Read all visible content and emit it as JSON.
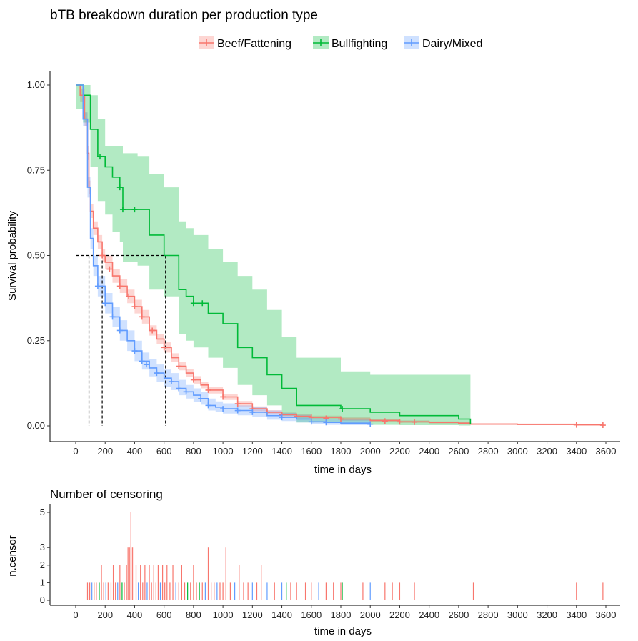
{
  "chart_data": [
    {
      "type": "line",
      "subtype": "kaplan-meier-survival",
      "title": "bTB breakdown duration per production type",
      "xlabel": "time in days",
      "ylabel": "Survival probability",
      "xlim": [
        0,
        3600
      ],
      "ylim": [
        0,
        1
      ],
      "x_ticks": [
        0,
        200,
        400,
        600,
        800,
        1000,
        1200,
        1400,
        1600,
        1800,
        2000,
        2200,
        2400,
        2600,
        2800,
        3000,
        3200,
        3400,
        3600
      ],
      "y_ticks": [
        0,
        0.25,
        0.5,
        0.75,
        1
      ],
      "y_tick_labels": [
        "0.00",
        "0.25",
        "0.50",
        "0.75",
        "1.00"
      ],
      "legend_position": "top",
      "median_lines": {
        "y": 0.5,
        "x": [
          90,
          180,
          610
        ]
      },
      "series": [
        {
          "name": "Beef/Fattening",
          "color": "#f8766d",
          "x": [
            0,
            30,
            60,
            80,
            90,
            100,
            120,
            150,
            180,
            200,
            250,
            300,
            350,
            400,
            450,
            500,
            550,
            600,
            650,
            700,
            750,
            800,
            850,
            900,
            1000,
            1100,
            1200,
            1300,
            1400,
            1500,
            1600,
            1800,
            2000,
            2200,
            2400,
            2600,
            2680,
            3000,
            3400,
            3580
          ],
          "y": [
            1.0,
            0.97,
            0.9,
            0.8,
            0.7,
            0.63,
            0.58,
            0.54,
            0.5,
            0.48,
            0.44,
            0.41,
            0.38,
            0.35,
            0.32,
            0.28,
            0.255,
            0.23,
            0.2,
            0.175,
            0.155,
            0.135,
            0.12,
            0.105,
            0.085,
            0.065,
            0.05,
            0.04,
            0.033,
            0.028,
            0.025,
            0.02,
            0.016,
            0.012,
            0.01,
            0.008,
            0.005,
            0.004,
            0.003,
            0.002
          ],
          "ci_lower": [
            1.0,
            0.95,
            0.88,
            0.78,
            0.68,
            0.61,
            0.56,
            0.52,
            0.48,
            0.46,
            0.42,
            0.39,
            0.36,
            0.33,
            0.3,
            0.265,
            0.24,
            0.215,
            0.187,
            0.163,
            0.143,
            0.124,
            0.11,
            0.095,
            0.076,
            0.057,
            0.043,
            0.034,
            0.027,
            0.022,
            0.02,
            0.015,
            0.012,
            0.009,
            0.007,
            0.005,
            0.003,
            0.002,
            0.001,
            0.001
          ],
          "ci_upper": [
            1.0,
            0.99,
            0.92,
            0.82,
            0.72,
            0.65,
            0.6,
            0.56,
            0.52,
            0.5,
            0.46,
            0.43,
            0.4,
            0.37,
            0.34,
            0.295,
            0.27,
            0.245,
            0.213,
            0.187,
            0.167,
            0.146,
            0.13,
            0.115,
            0.094,
            0.073,
            0.057,
            0.046,
            0.039,
            0.034,
            0.03,
            0.025,
            0.02,
            0.016,
            0.013,
            0.011,
            0.008,
            0.007,
            0.006,
            0.005
          ],
          "censor_times": [
            180,
            230,
            300,
            360,
            400,
            450,
            520,
            600,
            700,
            800,
            900,
            1000,
            1100,
            1200,
            1300,
            1400,
            1500,
            1600,
            1700,
            1800,
            2100,
            2200,
            2300,
            3400,
            3580
          ],
          "censor_surv": [
            0.5,
            0.46,
            0.41,
            0.38,
            0.35,
            0.32,
            0.28,
            0.23,
            0.175,
            0.135,
            0.105,
            0.085,
            0.065,
            0.05,
            0.04,
            0.033,
            0.028,
            0.025,
            0.022,
            0.02,
            0.014,
            0.012,
            0.011,
            0.003,
            0.002
          ]
        },
        {
          "name": "Bullfighting",
          "color": "#00ba38",
          "x": [
            0,
            50,
            100,
            150,
            200,
            250,
            300,
            320,
            420,
            500,
            600,
            700,
            750,
            800,
            900,
            1000,
            1100,
            1200,
            1300,
            1400,
            1500,
            1800,
            2000,
            2200,
            2600,
            2680
          ],
          "y": [
            1.0,
            0.97,
            0.87,
            0.79,
            0.76,
            0.73,
            0.7,
            0.635,
            0.635,
            0.56,
            0.5,
            0.4,
            0.38,
            0.36,
            0.33,
            0.3,
            0.23,
            0.2,
            0.15,
            0.11,
            0.06,
            0.05,
            0.04,
            0.03,
            0.02,
            0.005
          ],
          "ci_lower": [
            0.93,
            0.89,
            0.76,
            0.66,
            0.62,
            0.57,
            0.54,
            0.48,
            0.47,
            0.4,
            0.38,
            0.27,
            0.25,
            0.23,
            0.2,
            0.17,
            0.12,
            0.09,
            0.06,
            0.03,
            0.01,
            0.005,
            0.003,
            0.002,
            0.001,
            0.0
          ],
          "ci_upper": [
            1.0,
            1.0,
            0.97,
            0.9,
            0.82,
            0.82,
            0.82,
            0.8,
            0.79,
            0.74,
            0.7,
            0.6,
            0.58,
            0.56,
            0.52,
            0.48,
            0.44,
            0.4,
            0.34,
            0.26,
            0.2,
            0.16,
            0.15,
            0.15,
            0.15,
            0.15
          ],
          "censor_times": [
            165,
            300,
            320,
            400,
            800,
            860,
            1810
          ],
          "censor_surv": [
            0.79,
            0.7,
            0.635,
            0.635,
            0.36,
            0.36,
            0.05
          ]
        },
        {
          "name": "Dairy/Mixed",
          "color": "#619cff",
          "x": [
            0,
            50,
            80,
            100,
            120,
            150,
            200,
            250,
            300,
            350,
            400,
            450,
            500,
            550,
            600,
            650,
            700,
            750,
            800,
            850,
            900,
            950,
            1000,
            1100,
            1200,
            1300,
            1400,
            1500,
            1600,
            1700,
            1800,
            2000
          ],
          "y": [
            1.0,
            0.9,
            0.7,
            0.55,
            0.47,
            0.41,
            0.36,
            0.32,
            0.28,
            0.25,
            0.22,
            0.19,
            0.17,
            0.155,
            0.14,
            0.13,
            0.11,
            0.1,
            0.09,
            0.08,
            0.06,
            0.055,
            0.05,
            0.045,
            0.04,
            0.03,
            0.025,
            0.02,
            0.012,
            0.01,
            0.008,
            0.005
          ],
          "ci_lower": [
            1.0,
            0.88,
            0.67,
            0.52,
            0.44,
            0.38,
            0.33,
            0.29,
            0.25,
            0.22,
            0.19,
            0.165,
            0.145,
            0.13,
            0.115,
            0.105,
            0.09,
            0.08,
            0.07,
            0.062,
            0.045,
            0.04,
            0.036,
            0.031,
            0.026,
            0.018,
            0.014,
            0.01,
            0.005,
            0.003,
            0.002,
            0.001
          ],
          "ci_upper": [
            1.0,
            0.92,
            0.73,
            0.58,
            0.5,
            0.44,
            0.39,
            0.35,
            0.31,
            0.28,
            0.25,
            0.215,
            0.195,
            0.18,
            0.165,
            0.155,
            0.135,
            0.12,
            0.11,
            0.1,
            0.08,
            0.072,
            0.066,
            0.06,
            0.055,
            0.045,
            0.038,
            0.032,
            0.022,
            0.02,
            0.018,
            0.015
          ],
          "censor_times": [
            150,
            200,
            250,
            300,
            400,
            450,
            480,
            550,
            650,
            700,
            750,
            850,
            900,
            1000,
            1100,
            1200,
            1400,
            1600,
            1700,
            2000
          ],
          "censor_surv": [
            0.41,
            0.36,
            0.32,
            0.28,
            0.22,
            0.19,
            0.18,
            0.155,
            0.13,
            0.11,
            0.1,
            0.08,
            0.06,
            0.05,
            0.045,
            0.04,
            0.025,
            0.012,
            0.01,
            0.005
          ]
        }
      ]
    },
    {
      "type": "bar",
      "subtype": "censoring-histogram",
      "title": "Number of censoring",
      "xlabel": "time in days",
      "ylabel": "n.censor",
      "xlim": [
        0,
        3600
      ],
      "ylim": [
        0,
        5
      ],
      "x_ticks": [
        0,
        200,
        400,
        600,
        800,
        1000,
        1200,
        1400,
        1600,
        1800,
        2000,
        2200,
        2400,
        2600,
        2800,
        3000,
        3200,
        3400,
        3600
      ],
      "y_ticks": [
        0,
        1,
        2,
        3,
        5
      ],
      "bars": [
        {
          "x": 80,
          "n": 1,
          "series": "Beef/Fattening"
        },
        {
          "x": 95,
          "n": 1,
          "series": "Beef/Fattening"
        },
        {
          "x": 110,
          "n": 1,
          "series": "Dairy/Mixed"
        },
        {
          "x": 125,
          "n": 1,
          "series": "Beef/Fattening"
        },
        {
          "x": 140,
          "n": 1,
          "series": "Beef/Fattening"
        },
        {
          "x": 160,
          "n": 1,
          "series": "Bullfighting"
        },
        {
          "x": 175,
          "n": 2,
          "series": "Beef/Fattening"
        },
        {
          "x": 190,
          "n": 1,
          "series": "Beef/Fattening"
        },
        {
          "x": 205,
          "n": 1,
          "series": "Dairy/Mixed"
        },
        {
          "x": 220,
          "n": 1,
          "series": "Beef/Fattening"
        },
        {
          "x": 240,
          "n": 1,
          "series": "Beef/Fattening"
        },
        {
          "x": 255,
          "n": 2,
          "series": "Beef/Fattening"
        },
        {
          "x": 270,
          "n": 1,
          "series": "Beef/Fattening"
        },
        {
          "x": 285,
          "n": 1,
          "series": "Dairy/Mixed"
        },
        {
          "x": 300,
          "n": 2,
          "series": "Beef/Fattening"
        },
        {
          "x": 315,
          "n": 1,
          "series": "Bullfighting"
        },
        {
          "x": 330,
          "n": 1,
          "series": "Beef/Fattening"
        },
        {
          "x": 345,
          "n": 2,
          "series": "Beef/Fattening"
        },
        {
          "x": 355,
          "n": 3,
          "series": "Beef/Fattening"
        },
        {
          "x": 365,
          "n": 3,
          "series": "Beef/Fattening"
        },
        {
          "x": 375,
          "n": 5,
          "series": "Beef/Fattening"
        },
        {
          "x": 385,
          "n": 3,
          "series": "Beef/Fattening"
        },
        {
          "x": 395,
          "n": 3,
          "series": "Beef/Fattening"
        },
        {
          "x": 410,
          "n": 2,
          "series": "Beef/Fattening"
        },
        {
          "x": 425,
          "n": 1,
          "series": "Dairy/Mixed"
        },
        {
          "x": 440,
          "n": 2,
          "series": "Beef/Fattening"
        },
        {
          "x": 455,
          "n": 1,
          "series": "Beef/Fattening"
        },
        {
          "x": 470,
          "n": 2,
          "series": "Beef/Fattening"
        },
        {
          "x": 485,
          "n": 1,
          "series": "Dairy/Mixed"
        },
        {
          "x": 500,
          "n": 2,
          "series": "Beef/Fattening"
        },
        {
          "x": 515,
          "n": 1,
          "series": "Beef/Fattening"
        },
        {
          "x": 530,
          "n": 2,
          "series": "Beef/Fattening"
        },
        {
          "x": 545,
          "n": 1,
          "series": "Beef/Fattening"
        },
        {
          "x": 560,
          "n": 2,
          "series": "Beef/Fattening"
        },
        {
          "x": 575,
          "n": 1,
          "series": "Dairy/Mixed"
        },
        {
          "x": 590,
          "n": 2,
          "series": "Beef/Fattening"
        },
        {
          "x": 605,
          "n": 1,
          "series": "Beef/Fattening"
        },
        {
          "x": 620,
          "n": 2,
          "series": "Beef/Fattening"
        },
        {
          "x": 640,
          "n": 1,
          "series": "Beef/Fattening"
        },
        {
          "x": 660,
          "n": 2,
          "series": "Beef/Fattening"
        },
        {
          "x": 680,
          "n": 1,
          "series": "Dairy/Mixed"
        },
        {
          "x": 700,
          "n": 1,
          "series": "Beef/Fattening"
        },
        {
          "x": 720,
          "n": 2,
          "series": "Beef/Fattening"
        },
        {
          "x": 740,
          "n": 1,
          "series": "Beef/Fattening"
        },
        {
          "x": 760,
          "n": 1,
          "series": "Bullfighting"
        },
        {
          "x": 780,
          "n": 1,
          "series": "Beef/Fattening"
        },
        {
          "x": 800,
          "n": 2,
          "series": "Beef/Fattening"
        },
        {
          "x": 820,
          "n": 1,
          "series": "Beef/Fattening"
        },
        {
          "x": 840,
          "n": 1,
          "series": "Bullfighting"
        },
        {
          "x": 860,
          "n": 1,
          "series": "Beef/Fattening"
        },
        {
          "x": 880,
          "n": 1,
          "series": "Dairy/Mixed"
        },
        {
          "x": 900,
          "n": 3,
          "series": "Beef/Fattening"
        },
        {
          "x": 920,
          "n": 1,
          "series": "Beef/Fattening"
        },
        {
          "x": 940,
          "n": 1,
          "series": "Beef/Fattening"
        },
        {
          "x": 960,
          "n": 1,
          "series": "Dairy/Mixed"
        },
        {
          "x": 980,
          "n": 1,
          "series": "Beef/Fattening"
        },
        {
          "x": 1000,
          "n": 1,
          "series": "Beef/Fattening"
        },
        {
          "x": 1020,
          "n": 3,
          "series": "Beef/Fattening"
        },
        {
          "x": 1050,
          "n": 1,
          "series": "Beef/Fattening"
        },
        {
          "x": 1080,
          "n": 1,
          "series": "Dairy/Mixed"
        },
        {
          "x": 1110,
          "n": 2,
          "series": "Beef/Fattening"
        },
        {
          "x": 1140,
          "n": 1,
          "series": "Beef/Fattening"
        },
        {
          "x": 1170,
          "n": 1,
          "series": "Beef/Fattening"
        },
        {
          "x": 1200,
          "n": 1,
          "series": "Dairy/Mixed"
        },
        {
          "x": 1230,
          "n": 1,
          "series": "Beef/Fattening"
        },
        {
          "x": 1260,
          "n": 2,
          "series": "Beef/Fattening"
        },
        {
          "x": 1300,
          "n": 1,
          "series": "Dairy/Mixed"
        },
        {
          "x": 1350,
          "n": 1,
          "series": "Beef/Fattening"
        },
        {
          "x": 1400,
          "n": 1,
          "series": "Dairy/Mixed"
        },
        {
          "x": 1430,
          "n": 1,
          "series": "Bullfighting"
        },
        {
          "x": 1460,
          "n": 1,
          "series": "Beef/Fattening"
        },
        {
          "x": 1500,
          "n": 1,
          "series": "Beef/Fattening"
        },
        {
          "x": 1560,
          "n": 1,
          "series": "Beef/Fattening"
        },
        {
          "x": 1600,
          "n": 1,
          "series": "Beef/Fattening"
        },
        {
          "x": 1650,
          "n": 1,
          "series": "Dairy/Mixed"
        },
        {
          "x": 1700,
          "n": 1,
          "series": "Beef/Fattening"
        },
        {
          "x": 1750,
          "n": 1,
          "series": "Beef/Fattening"
        },
        {
          "x": 1800,
          "n": 1,
          "series": "Beef/Fattening"
        },
        {
          "x": 1810,
          "n": 1,
          "series": "Bullfighting"
        },
        {
          "x": 1950,
          "n": 1,
          "series": "Beef/Fattening"
        },
        {
          "x": 2000,
          "n": 1,
          "series": "Dairy/Mixed"
        },
        {
          "x": 2100,
          "n": 1,
          "series": "Beef/Fattening"
        },
        {
          "x": 2150,
          "n": 1,
          "series": "Beef/Fattening"
        },
        {
          "x": 2200,
          "n": 1,
          "series": "Beef/Fattening"
        },
        {
          "x": 2300,
          "n": 1,
          "series": "Beef/Fattening"
        },
        {
          "x": 2700,
          "n": 1,
          "series": "Beef/Fattening"
        },
        {
          "x": 3400,
          "n": 1,
          "series": "Beef/Fattening"
        },
        {
          "x": 3580,
          "n": 1,
          "series": "Beef/Fattening"
        }
      ]
    }
  ]
}
